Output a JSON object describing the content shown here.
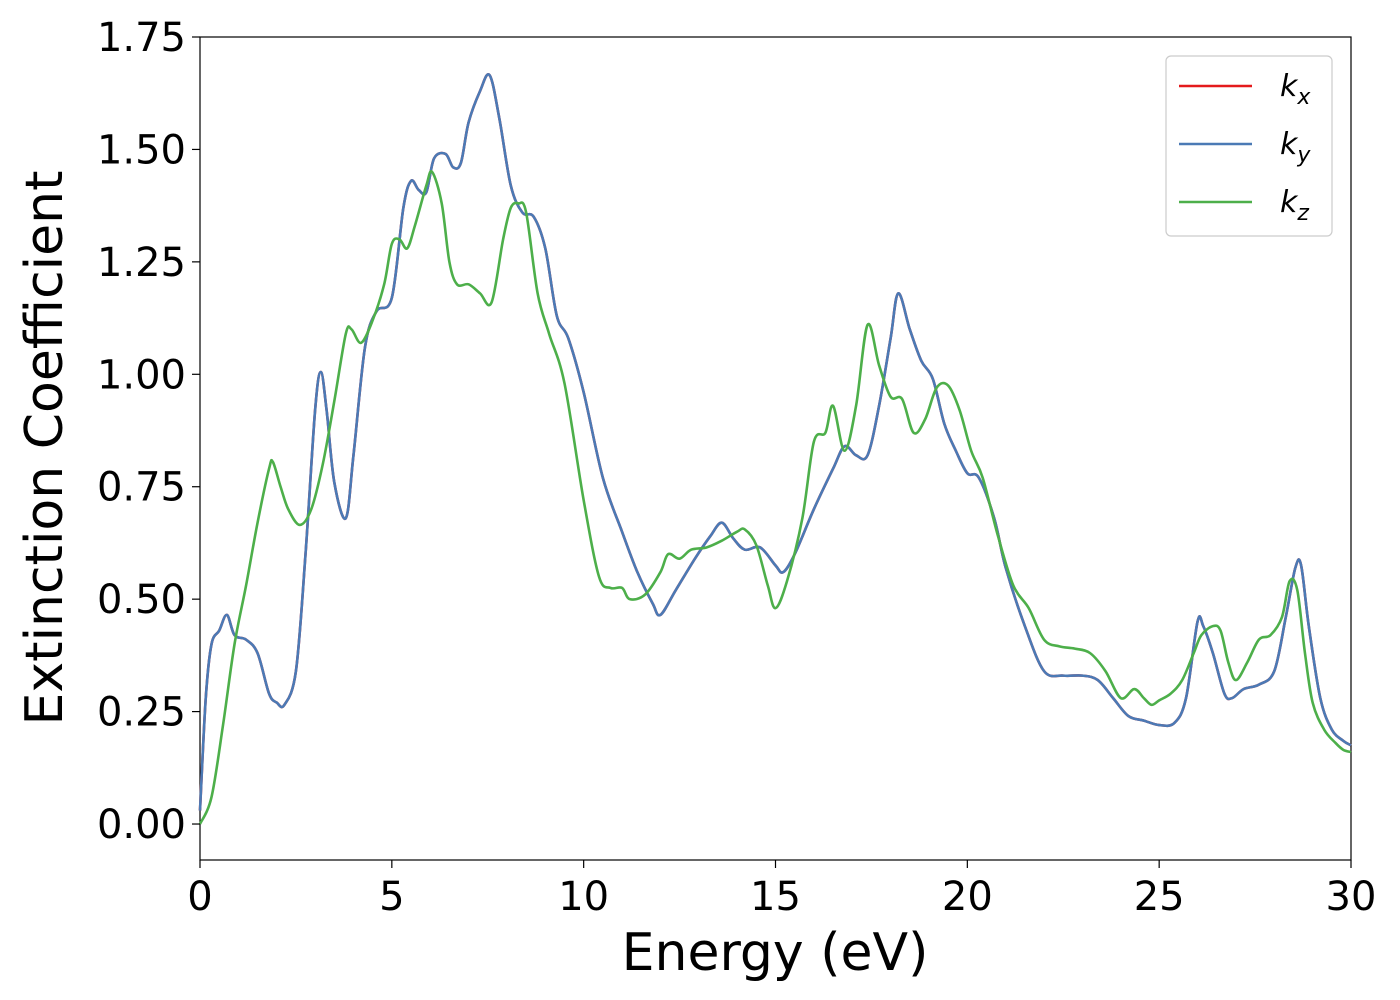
{
  "chart_data": {
    "type": "line",
    "title": "",
    "xlabel": "Energy (eV)",
    "ylabel": "Extinction Coefficient",
    "xlim": [
      0,
      30
    ],
    "ylim": [
      -0.08,
      1.75
    ],
    "xticks": [
      0,
      5,
      10,
      15,
      20,
      25,
      30
    ],
    "xtick_labels": [
      "0",
      "5",
      "10",
      "15",
      "20",
      "25",
      "30"
    ],
    "yticks": [
      0,
      0.25,
      0.5,
      0.75,
      1.0,
      1.25,
      1.5,
      1.75
    ],
    "ytick_labels": [
      "0.00",
      "0.25",
      "0.50",
      "0.75",
      "1.00",
      "1.25",
      "1.50",
      "1.75"
    ],
    "grid": false,
    "legend_position": "top-right",
    "series": [
      {
        "name": "k",
        "sub": "x",
        "color": "#e41a1c",
        "x": [
          0,
          0.15,
          0.3,
          0.5,
          0.7,
          0.9,
          1.2,
          1.5,
          1.8,
          2.0,
          2.2,
          2.5,
          2.75,
          3.0,
          3.15,
          3.3,
          3.5,
          3.8,
          4.0,
          4.3,
          4.6,
          5.0,
          5.3,
          5.5,
          5.7,
          5.9,
          6.1,
          6.4,
          6.6,
          6.8,
          7.0,
          7.3,
          7.55,
          7.8,
          8.1,
          8.4,
          8.7,
          9.0,
          9.3,
          9.6,
          10.0,
          10.5,
          11.0,
          11.4,
          11.8,
          12.0,
          12.4,
          12.9,
          13.3,
          13.6,
          13.9,
          14.2,
          14.6,
          15.0,
          15.2,
          15.5,
          16.0,
          16.5,
          16.8,
          17.1,
          17.4,
          17.7,
          18.0,
          18.2,
          18.5,
          18.8,
          19.1,
          19.4,
          19.7,
          20.0,
          20.3,
          20.7,
          21.0,
          21.5,
          22.0,
          22.5,
          23.0,
          23.4,
          23.8,
          24.2,
          24.6,
          25.0,
          25.4,
          25.7,
          26.0,
          26.15,
          26.4,
          26.7,
          26.9,
          27.2,
          27.6,
          28.0,
          28.3,
          28.55,
          28.7,
          28.9,
          29.2,
          29.5,
          29.8,
          30.0
        ],
        "y": [
          0.03,
          0.28,
          0.4,
          0.43,
          0.465,
          0.42,
          0.41,
          0.38,
          0.29,
          0.27,
          0.265,
          0.34,
          0.6,
          0.92,
          1.005,
          0.92,
          0.76,
          0.68,
          0.82,
          1.06,
          1.14,
          1.17,
          1.37,
          1.43,
          1.41,
          1.405,
          1.48,
          1.49,
          1.46,
          1.47,
          1.56,
          1.63,
          1.665,
          1.57,
          1.42,
          1.36,
          1.35,
          1.28,
          1.13,
          1.08,
          0.96,
          0.77,
          0.65,
          0.56,
          0.49,
          0.465,
          0.52,
          0.59,
          0.64,
          0.67,
          0.635,
          0.61,
          0.615,
          0.575,
          0.56,
          0.6,
          0.7,
          0.79,
          0.84,
          0.82,
          0.82,
          0.93,
          1.08,
          1.18,
          1.1,
          1.03,
          0.99,
          0.89,
          0.83,
          0.78,
          0.77,
          0.68,
          0.57,
          0.44,
          0.34,
          0.33,
          0.33,
          0.32,
          0.28,
          0.24,
          0.23,
          0.22,
          0.225,
          0.28,
          0.45,
          0.44,
          0.38,
          0.29,
          0.28,
          0.3,
          0.31,
          0.34,
          0.46,
          0.57,
          0.575,
          0.44,
          0.28,
          0.21,
          0.185,
          0.175
        ]
      },
      {
        "name": "k",
        "sub": "y",
        "color": "#4b7ab5",
        "x": [
          0,
          0.15,
          0.3,
          0.5,
          0.7,
          0.9,
          1.2,
          1.5,
          1.8,
          2.0,
          2.2,
          2.5,
          2.75,
          3.0,
          3.15,
          3.3,
          3.5,
          3.8,
          4.0,
          4.3,
          4.6,
          5.0,
          5.3,
          5.5,
          5.7,
          5.9,
          6.1,
          6.4,
          6.6,
          6.8,
          7.0,
          7.3,
          7.55,
          7.8,
          8.1,
          8.4,
          8.7,
          9.0,
          9.3,
          9.6,
          10.0,
          10.5,
          11.0,
          11.4,
          11.8,
          12.0,
          12.4,
          12.9,
          13.3,
          13.6,
          13.9,
          14.2,
          14.6,
          15.0,
          15.2,
          15.5,
          16.0,
          16.5,
          16.8,
          17.1,
          17.4,
          17.7,
          18.0,
          18.2,
          18.5,
          18.8,
          19.1,
          19.4,
          19.7,
          20.0,
          20.3,
          20.7,
          21.0,
          21.5,
          22.0,
          22.5,
          23.0,
          23.4,
          23.8,
          24.2,
          24.6,
          25.0,
          25.4,
          25.7,
          26.0,
          26.15,
          26.4,
          26.7,
          26.9,
          27.2,
          27.6,
          28.0,
          28.3,
          28.55,
          28.7,
          28.9,
          29.2,
          29.5,
          29.8,
          30.0
        ],
        "y": [
          0.03,
          0.28,
          0.4,
          0.43,
          0.465,
          0.42,
          0.41,
          0.38,
          0.29,
          0.27,
          0.265,
          0.34,
          0.6,
          0.92,
          1.005,
          0.92,
          0.76,
          0.68,
          0.82,
          1.06,
          1.14,
          1.17,
          1.37,
          1.43,
          1.41,
          1.405,
          1.48,
          1.49,
          1.46,
          1.47,
          1.56,
          1.63,
          1.665,
          1.57,
          1.42,
          1.36,
          1.35,
          1.28,
          1.13,
          1.08,
          0.96,
          0.77,
          0.65,
          0.56,
          0.49,
          0.465,
          0.52,
          0.59,
          0.64,
          0.67,
          0.635,
          0.61,
          0.615,
          0.575,
          0.56,
          0.6,
          0.7,
          0.79,
          0.84,
          0.82,
          0.82,
          0.93,
          1.08,
          1.18,
          1.1,
          1.03,
          0.99,
          0.89,
          0.83,
          0.78,
          0.77,
          0.68,
          0.57,
          0.44,
          0.34,
          0.33,
          0.33,
          0.32,
          0.28,
          0.24,
          0.23,
          0.22,
          0.225,
          0.28,
          0.45,
          0.44,
          0.38,
          0.29,
          0.28,
          0.3,
          0.31,
          0.34,
          0.46,
          0.57,
          0.575,
          0.44,
          0.28,
          0.21,
          0.185,
          0.175
        ]
      },
      {
        "name": "k",
        "sub": "z",
        "color": "#4daf4a",
        "x": [
          0,
          0.3,
          0.6,
          0.9,
          1.2,
          1.5,
          1.8,
          1.9,
          2.1,
          2.3,
          2.6,
          2.9,
          3.2,
          3.5,
          3.8,
          3.95,
          4.2,
          4.5,
          4.8,
          5.0,
          5.2,
          5.4,
          5.6,
          5.9,
          6.05,
          6.3,
          6.5,
          6.7,
          7.0,
          7.3,
          7.6,
          7.9,
          8.1,
          8.3,
          8.5,
          8.8,
          9.1,
          9.5,
          10.0,
          10.4,
          10.7,
          11.0,
          11.2,
          11.6,
          12.0,
          12.2,
          12.5,
          12.8,
          13.2,
          13.6,
          14.0,
          14.2,
          14.5,
          14.8,
          15.0,
          15.3,
          15.7,
          16.0,
          16.3,
          16.5,
          16.8,
          17.1,
          17.4,
          17.7,
          18.0,
          18.3,
          18.6,
          18.9,
          19.2,
          19.5,
          19.8,
          20.1,
          20.4,
          20.8,
          21.2,
          21.6,
          22.0,
          22.4,
          22.8,
          23.2,
          23.6,
          24.0,
          24.35,
          24.6,
          24.8,
          25.0,
          25.3,
          25.6,
          25.9,
          26.1,
          26.4,
          26.6,
          26.8,
          27.0,
          27.3,
          27.6,
          27.9,
          28.2,
          28.4,
          28.6,
          28.8,
          29.0,
          29.3,
          29.6,
          29.8,
          30.0
        ],
        "y": [
          0.0,
          0.06,
          0.22,
          0.4,
          0.53,
          0.67,
          0.79,
          0.805,
          0.75,
          0.7,
          0.665,
          0.7,
          0.8,
          0.94,
          1.09,
          1.1,
          1.07,
          1.12,
          1.2,
          1.29,
          1.3,
          1.28,
          1.33,
          1.42,
          1.45,
          1.38,
          1.25,
          1.2,
          1.2,
          1.18,
          1.16,
          1.3,
          1.37,
          1.38,
          1.36,
          1.18,
          1.09,
          0.98,
          0.72,
          0.55,
          0.525,
          0.525,
          0.5,
          0.51,
          0.56,
          0.6,
          0.59,
          0.61,
          0.615,
          0.63,
          0.65,
          0.655,
          0.62,
          0.53,
          0.48,
          0.54,
          0.68,
          0.85,
          0.87,
          0.93,
          0.83,
          0.93,
          1.11,
          1.02,
          0.95,
          0.945,
          0.87,
          0.9,
          0.97,
          0.975,
          0.92,
          0.83,
          0.77,
          0.64,
          0.53,
          0.48,
          0.41,
          0.395,
          0.39,
          0.38,
          0.34,
          0.28,
          0.3,
          0.28,
          0.265,
          0.275,
          0.29,
          0.32,
          0.38,
          0.42,
          0.44,
          0.43,
          0.36,
          0.32,
          0.36,
          0.41,
          0.42,
          0.46,
          0.54,
          0.52,
          0.38,
          0.27,
          0.21,
          0.18,
          0.165,
          0.16
        ]
      }
    ]
  }
}
